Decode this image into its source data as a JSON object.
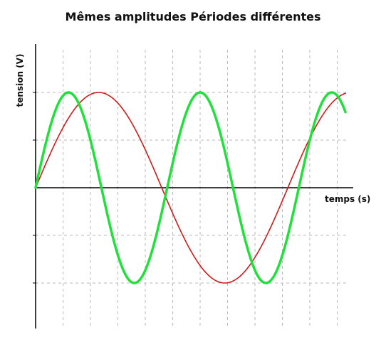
{
  "chart_data": {
    "type": "line",
    "title": "Mêmes amplitudes Périodes différentes",
    "xlabel": "temps (s)",
    "ylabel": "tension (V)",
    "grid": true,
    "xlim": [
      0,
      11.3
    ],
    "ylim": [
      -3,
      3
    ],
    "series": [
      {
        "color": "#d11a1a",
        "amplitude": 2,
        "period": 9.2,
        "x_start": 0,
        "x_end": 11.3
      },
      {
        "color": "#22e03c",
        "amplitude": 2,
        "period": 4.8,
        "x_start": 0,
        "x_end": 11.3
      }
    ]
  },
  "colors": {
    "grid": "#b9b9b9",
    "axis": "#000000"
  }
}
